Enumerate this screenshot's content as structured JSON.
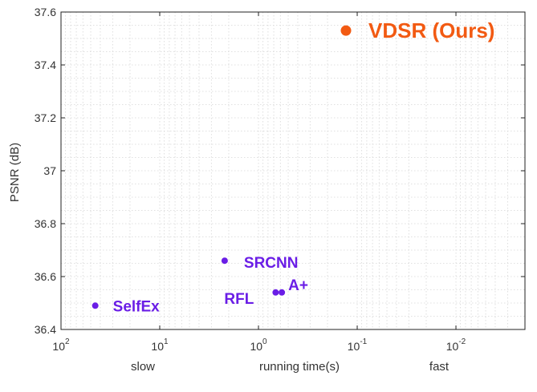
{
  "chart_data": {
    "type": "scatter",
    "title": "",
    "xlabel": "running time(s)",
    "ylabel": "PSNR (dB)",
    "x_scale": "log",
    "x_reversed": true,
    "xlim": [
      100,
      0.002
    ],
    "ylim": [
      36.4,
      37.6
    ],
    "grid": true,
    "x_ticks": [
      {
        "value": 100,
        "base": "10",
        "exp": "2"
      },
      {
        "value": 10,
        "base": "10",
        "exp": "1"
      },
      {
        "value": 1,
        "base": "10",
        "exp": "0"
      },
      {
        "value": 0.1,
        "base": "10",
        "exp": "-1"
      },
      {
        "value": 0.01,
        "base": "10",
        "exp": "-2"
      }
    ],
    "y_ticks": [
      "36.4",
      "36.6",
      "36.8",
      "37",
      "37.2",
      "37.4",
      "37.6"
    ],
    "x_annotations": [
      "slow",
      "fast"
    ],
    "points": [
      {
        "name": "SelfEx",
        "x": 45,
        "y": 36.49,
        "color": "#6a1de6"
      },
      {
        "name": "SRCNN",
        "x": 2.2,
        "y": 36.66,
        "color": "#6a1de6"
      },
      {
        "name": "RFL",
        "x": 0.67,
        "y": 36.54,
        "color": "#6a1de6"
      },
      {
        "name": "A+",
        "x": 0.58,
        "y": 36.54,
        "color": "#6a1de6"
      },
      {
        "name": "VDSR (Ours)",
        "x": 0.13,
        "y": 37.53,
        "color": "#f25a12"
      }
    ]
  }
}
